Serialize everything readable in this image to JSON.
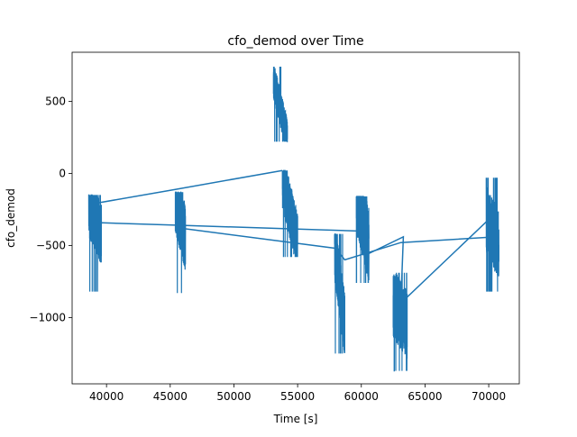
{
  "chart_data": {
    "type": "line",
    "title": "cfo_demod over Time",
    "xlabel": "Time [s]",
    "ylabel": "cfo_demod",
    "xlim": [
      37300,
      72400
    ],
    "ylim": [
      -1460,
      840
    ],
    "xticks": [
      40000,
      45000,
      50000,
      55000,
      60000,
      65000,
      70000
    ],
    "xtick_labels": [
      "40000",
      "45000",
      "50000",
      "55000",
      "60000",
      "65000",
      "70000"
    ],
    "yticks": [
      -1000,
      -500,
      0,
      500
    ],
    "ytick_labels": [
      "−1000",
      "−500",
      "0",
      "500"
    ],
    "grid": false,
    "legend": "none",
    "colors": {
      "series": "#1f77b4"
    },
    "series": [
      {
        "bursts": [
          {
            "x_start": 38600,
            "x_end": 39600,
            "y_start": -220,
            "y_end": -420,
            "spread": 220,
            "peak_high": -150,
            "peak_low": -820
          },
          {
            "x_start": 45400,
            "x_end": 46200,
            "y_start": -180,
            "y_end": -450,
            "spread": 230,
            "peak_high": -130,
            "peak_low": -830
          },
          {
            "x_start": 53100,
            "x_end": 54200,
            "y_start": 650,
            "y_end": 250,
            "spread": 130,
            "peak_high": 740,
            "peak_low": 220
          },
          {
            "x_start": 53800,
            "x_end": 55000,
            "y_start": -50,
            "y_end": -470,
            "spread": 200,
            "peak_high": 20,
            "peak_low": -580
          },
          {
            "x_start": 57900,
            "x_end": 58700,
            "y_start": -520,
            "y_end": -1050,
            "spread": 220,
            "peak_high": -420,
            "peak_low": -1250
          },
          {
            "x_start": 59600,
            "x_end": 60600,
            "y_start": -150,
            "y_end": -500,
            "spread": 260,
            "peak_high": -160,
            "peak_low": -760
          },
          {
            "x_start": 62500,
            "x_end": 63600,
            "y_start": -900,
            "y_end": -1050,
            "spread": 240,
            "peak_high": -690,
            "peak_low": -1370
          },
          {
            "x_start": 69800,
            "x_end": 70800,
            "y_start": -320,
            "y_end": -500,
            "spread": 240,
            "peak_high": -30,
            "peak_low": -820
          }
        ],
        "connectors": [
          {
            "x": [
              39000,
              45500,
              53800
            ],
            "y": [
              -210,
              -110,
              20
            ]
          },
          {
            "x": [
              38600,
              45700,
              59700,
              60500,
              63300,
              63100,
              70000
            ],
            "y": [
              -340,
              -360,
              -400,
              -560,
              -440,
              -900,
              -320
            ]
          },
          {
            "x": [
              45800,
              58000,
              58700,
              63100,
              70700
            ],
            "y": [
              -380,
              -520,
              -600,
              -480,
              -440
            ]
          }
        ]
      }
    ]
  }
}
